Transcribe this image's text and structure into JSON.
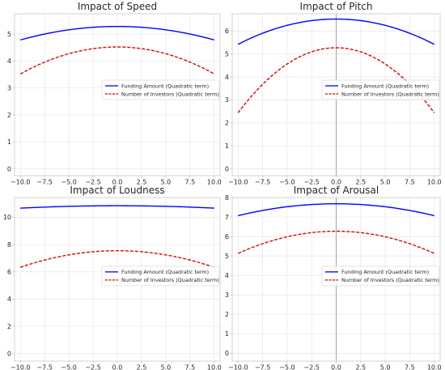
{
  "figure": {
    "background": "#ffffff"
  },
  "chart_data": [
    {
      "type": "line",
      "title": "Impact of Speed",
      "xlabel": "",
      "ylabel": "",
      "xlim": [
        -10.6,
        10.6
      ],
      "ylim": [
        -0.25,
        5.75
      ],
      "xticks": [
        "−10.0",
        "−7.5",
        "−5.0",
        "−2.5",
        "0.0",
        "2.5",
        "5.0",
        "7.5",
        "10.0"
      ],
      "xtick_values": [
        -10,
        -7.5,
        -5,
        -2.5,
        0,
        2.5,
        5,
        7.5,
        10
      ],
      "yticks": [
        "0",
        "1",
        "2",
        "3",
        "4",
        "5"
      ],
      "ytick_values": [
        0,
        1,
        2,
        3,
        4,
        5
      ],
      "grid": true,
      "zero_line": false,
      "legend_position": "center-right",
      "series": [
        {
          "name": "Funding Amount (Quadratic term)",
          "color": "#0000ff",
          "style": "solid",
          "curve": "quadratic",
          "peak_x": 0,
          "peak_y": 5.28,
          "edge_y": 4.78
        },
        {
          "name": "Number of Investors (Quadratic term)",
          "color": "#e50000",
          "style": "dashed",
          "curve": "quadratic",
          "peak_x": 0,
          "peak_y": 4.52,
          "edge_y": 3.52
        }
      ]
    },
    {
      "type": "line",
      "title": "Impact of Pitch",
      "xlabel": "",
      "ylabel": "",
      "xlim": [
        -10.6,
        10.6
      ],
      "ylim": [
        -0.3,
        6.75
      ],
      "xticks": [
        "−10.0",
        "−7.5",
        "−5.0",
        "−2.5",
        "0.0",
        "2.5",
        "5.0",
        "7.5",
        "10.0"
      ],
      "xtick_values": [
        -10,
        -7.5,
        -5,
        -2.5,
        0,
        2.5,
        5,
        7.5,
        10
      ],
      "yticks": [
        "0",
        "1",
        "2",
        "3",
        "4",
        "5",
        "6"
      ],
      "ytick_values": [
        0,
        1,
        2,
        3,
        4,
        5,
        6
      ],
      "grid": true,
      "zero_line": true,
      "legend_position": "center-right",
      "series": [
        {
          "name": "Funding Amount (Quadratic term)",
          "color": "#0000ff",
          "style": "solid",
          "curve": "quadratic",
          "peak_x": 0,
          "peak_y": 6.52,
          "edge_y": 5.42
        },
        {
          "name": "Number of Investors (Quadratic term)",
          "color": "#e50000",
          "style": "dashed",
          "curve": "quadratic",
          "peak_x": 0,
          "peak_y": 5.27,
          "edge_y": 2.44
        }
      ]
    },
    {
      "type": "line",
      "title": "Impact of Loudness",
      "xlabel": "",
      "ylabel": "",
      "xlim": [
        -10.6,
        10.6
      ],
      "ylim": [
        -0.55,
        11.45
      ],
      "xticks": [
        "−10.0",
        "−7.5",
        "−5.0",
        "−2.5",
        "0.0",
        "2.5",
        "5.0",
        "7.5",
        "10.0"
      ],
      "xtick_values": [
        -10,
        -7.5,
        -5,
        -2.5,
        0,
        2.5,
        5,
        7.5,
        10
      ],
      "yticks": [
        "0",
        "2",
        "4",
        "6",
        "8",
        "10"
      ],
      "ytick_values": [
        0,
        2,
        4,
        6,
        8,
        10
      ],
      "grid": true,
      "zero_line": false,
      "legend_position": "lower-right",
      "series": [
        {
          "name": "Funding Amount (Quadratic term)",
          "color": "#0000ff",
          "style": "solid",
          "curve": "quadratic",
          "peak_x": 0,
          "peak_y": 10.85,
          "edge_y": 10.67
        },
        {
          "name": "Number of Investors (Quadratic term)",
          "color": "#e50000",
          "style": "dashed",
          "curve": "quadratic",
          "peak_x": 0,
          "peak_y": 7.55,
          "edge_y": 6.33
        }
      ]
    },
    {
      "type": "line",
      "title": "Impact of Arousal",
      "xlabel": "",
      "ylabel": "",
      "xlim": [
        -10.6,
        10.6
      ],
      "ylim": [
        -0.4,
        8.0
      ],
      "xticks": [
        "−10.0",
        "−7.5",
        "−5.0",
        "−2.5",
        "0.0",
        "2.5",
        "5.0",
        "7.5",
        "10.0"
      ],
      "xtick_values": [
        -10,
        -7.5,
        -5,
        -2.5,
        0,
        2.5,
        5,
        7.5,
        10
      ],
      "yticks": [
        "0",
        "1",
        "2",
        "3",
        "4",
        "5",
        "6",
        "7",
        "8"
      ],
      "ytick_values": [
        0,
        1,
        2,
        3,
        4,
        5,
        6,
        7,
        8
      ],
      "grid": true,
      "zero_line": true,
      "legend_position": "lower-right",
      "series": [
        {
          "name": "Funding Amount (Quadratic term)",
          "color": "#0000ff",
          "style": "solid",
          "curve": "quadratic",
          "peak_x": 0,
          "peak_y": 7.68,
          "edge_y": 7.07
        },
        {
          "name": "Number of Investors (Quadratic term)",
          "color": "#e50000",
          "style": "dashed",
          "curve": "quadratic",
          "peak_x": 0,
          "peak_y": 6.27,
          "edge_y": 5.13
        }
      ]
    }
  ]
}
